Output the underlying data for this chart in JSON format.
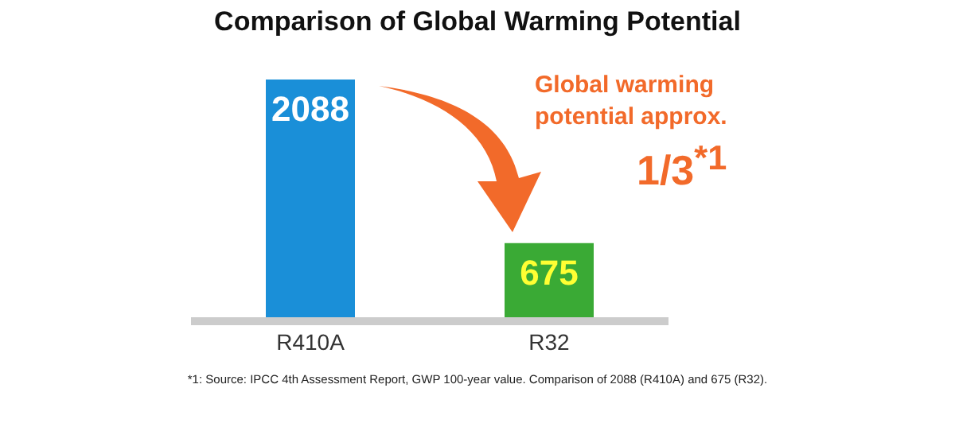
{
  "chart_data": {
    "type": "bar",
    "title": "Comparison of Global Warming Potential",
    "categories": [
      "R410A",
      "R32"
    ],
    "values": [
      2088,
      675
    ],
    "colors": [
      "#1a8fd8",
      "#3aaa35"
    ],
    "data_labels": true,
    "annotations": [
      "Global warming potential approx.",
      "1/3$^{*1}$",
      "*1: Source: IPCC 4th Assessment Report, GWP 100-year value. Comparison of 2088 (R410A) and 675 (R32)."
    ]
  }
}
